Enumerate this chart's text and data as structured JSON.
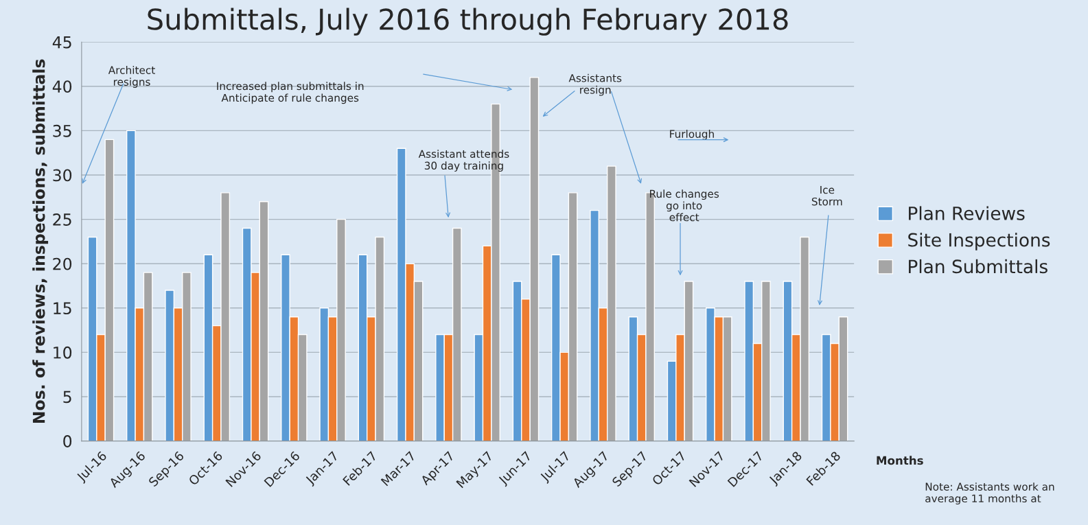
{
  "chart_data": {
    "type": "bar",
    "title": "Submittals, July 2016 through February 2018",
    "xlabel": "Months",
    "ylabel": "Nos. of reviews, inspections, submittals",
    "categories": [
      "Jul-16",
      "Aug-16",
      "Sep-16",
      "Oct-16",
      "Nov-16",
      "Dec-16",
      "Jan-17",
      "Feb-17",
      "Mar-17",
      "Apr-17",
      "May-17",
      "Jun-17",
      "Jul-17",
      "Aug-17",
      "Sep-17",
      "Oct-17",
      "Nov-17",
      "Dec-17",
      "Jan-18",
      "Feb-18"
    ],
    "series": [
      {
        "name": "Plan Reviews",
        "color": "#5b9bd5",
        "values": [
          23,
          35,
          17,
          21,
          24,
          21,
          15,
          21,
          33,
          12,
          12,
          18,
          21,
          26,
          14,
          9,
          15,
          18,
          18,
          12
        ]
      },
      {
        "name": "Site Inspections",
        "color": "#ed7d31",
        "values": [
          12,
          15,
          15,
          13,
          19,
          14,
          14,
          14,
          20,
          12,
          22,
          16,
          10,
          15,
          12,
          12,
          14,
          11,
          12,
          11
        ]
      },
      {
        "name": "Plan Submittals",
        "color": "#a5a5a5",
        "values": [
          34,
          19,
          19,
          28,
          27,
          12,
          25,
          23,
          18,
          24,
          38,
          41,
          28,
          31,
          28,
          18,
          14,
          18,
          23,
          14
        ]
      }
    ],
    "ylim": [
      0,
      45
    ],
    "yticks": [
      0,
      5,
      10,
      15,
      20,
      25,
      30,
      35,
      40,
      45
    ],
    "grid": "y",
    "legend": "right",
    "annotations": [
      "Architect\nresigns",
      "Increased plan submittals in\nAnticipate of rule changes",
      "Assistants\nresign",
      "Assistant attends\n30 day training",
      "Furlough",
      "Rule changes\ngo into\neffect",
      "Ice\nStorm",
      "Note: Assistants work an average 11 months at"
    ]
  }
}
